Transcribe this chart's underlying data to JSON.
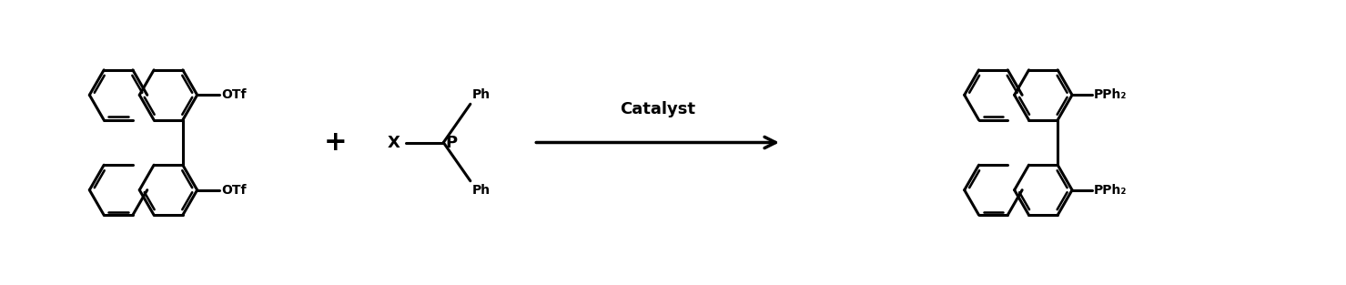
{
  "fig_width": 14.79,
  "fig_height": 3.13,
  "dpi": 100,
  "bg_color": "#ffffff",
  "line_color": "#000000",
  "line_width": 2.2,
  "text_color": "#000000",
  "font_size_label": 11,
  "font_size_catalyst": 13,
  "arrow_label": "Catalyst",
  "otf_label": "OTf",
  "pph2_label": "PPh₂",
  "ph_label": "Ph"
}
